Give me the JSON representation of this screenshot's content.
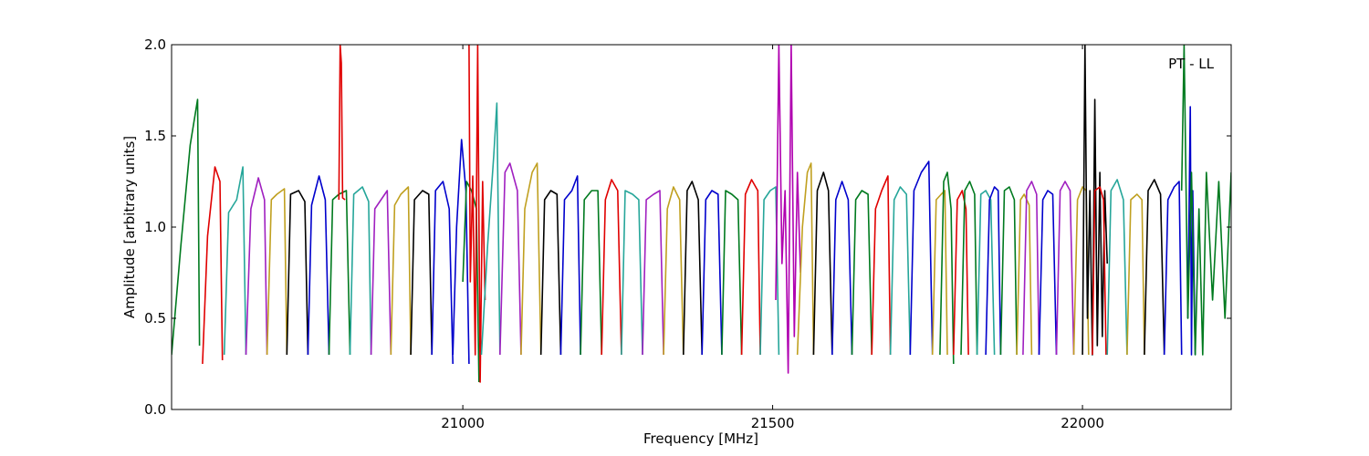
{
  "chart_data": {
    "type": "line",
    "title": "",
    "xlabel": "Frequency [MHz]",
    "ylabel": "Amplitude [arbitrary units]",
    "annotation": "PT - LL",
    "xlim": [
      20530,
      22240
    ],
    "ylim": [
      0.0,
      2.0
    ],
    "xticks": [
      21000,
      21500,
      22000
    ],
    "xtick_labels": [
      "21000",
      "21500",
      "22000"
    ],
    "yticks": [
      0.0,
      0.5,
      1.0,
      1.5,
      2.0
    ],
    "ytick_labels": [
      "0.0",
      "0.5",
      "1.0",
      "1.5",
      "2.0"
    ],
    "grid": false,
    "legend": "none",
    "colors": [
      "#0000cc",
      "#007a1f",
      "#e00000",
      "#26a69a",
      "#a020c0",
      "#c0a020",
      "#000000",
      "#b000b0",
      "#1414c8"
    ],
    "series": [
      {
        "color": "#007a1f",
        "x": [
          20530,
          20545,
          20560,
          20572,
          20575
        ],
        "y": [
          0.3,
          0.9,
          1.45,
          1.7,
          0.35
        ]
      },
      {
        "color": "#e00000",
        "x": [
          20580,
          20588,
          20600,
          20608,
          20612
        ],
        "y": [
          0.25,
          0.95,
          1.33,
          1.25,
          0.27
        ]
      },
      {
        "color": "#26a69a",
        "x": [
          20615,
          20622,
          20635,
          20645,
          20650
        ],
        "y": [
          0.3,
          1.08,
          1.15,
          1.33,
          0.3
        ]
      },
      {
        "color": "#a020c0",
        "x": [
          20650,
          20658,
          20670,
          20680,
          20684
        ],
        "y": [
          0.3,
          1.1,
          1.27,
          1.15,
          0.3
        ]
      },
      {
        "color": "#c0a020",
        "x": [
          20684,
          20691,
          20700,
          20712,
          20716
        ],
        "y": [
          0.3,
          1.15,
          1.18,
          1.21,
          0.3
        ]
      },
      {
        "color": "#000000",
        "x": [
          20716,
          20722,
          20735,
          20745,
          20750
        ],
        "y": [
          0.3,
          1.18,
          1.2,
          1.14,
          0.3
        ]
      },
      {
        "color": "#0000cc",
        "x": [
          20750,
          20756,
          20768,
          20778,
          20784
        ],
        "y": [
          0.3,
          1.12,
          1.28,
          1.15,
          0.3
        ]
      },
      {
        "color": "#007a1f",
        "x": [
          20784,
          20790,
          20800,
          20812,
          20818
        ],
        "y": [
          0.3,
          1.15,
          1.18,
          1.2,
          0.3
        ]
      },
      {
        "color": "#e00000",
        "x": [
          20800,
          20802,
          20804,
          20806,
          20810
        ],
        "y": [
          1.15,
          2.0,
          1.9,
          1.16,
          1.15
        ]
      },
      {
        "color": "#26a69a",
        "x": [
          20818,
          20824,
          20838,
          20848,
          20852
        ],
        "y": [
          0.3,
          1.18,
          1.22,
          1.14,
          0.3
        ]
      },
      {
        "color": "#a020c0",
        "x": [
          20852,
          20858,
          20868,
          20878,
          20884
        ],
        "y": [
          0.3,
          1.1,
          1.15,
          1.2,
          0.3
        ]
      },
      {
        "color": "#c0a020",
        "x": [
          20884,
          20890,
          20900,
          20912,
          20916
        ],
        "y": [
          0.3,
          1.12,
          1.18,
          1.22,
          0.3
        ]
      },
      {
        "color": "#000000",
        "x": [
          20916,
          20922,
          20935,
          20945,
          20950
        ],
        "y": [
          0.3,
          1.15,
          1.2,
          1.18,
          0.3
        ]
      },
      {
        "color": "#0000cc",
        "x": [
          20950,
          20956,
          20968,
          20978,
          20984
        ],
        "y": [
          0.3,
          1.2,
          1.25,
          1.1,
          0.25
        ]
      },
      {
        "color": "#0000cc",
        "x": [
          20984,
          20990,
          20998,
          21005,
          21010
        ],
        "y": [
          0.3,
          1.0,
          1.48,
          1.2,
          0.25
        ]
      },
      {
        "color": "#007a1f",
        "x": [
          21000,
          21006,
          21014,
          21022,
          21026
        ],
        "y": [
          0.7,
          1.25,
          1.2,
          1.1,
          0.15
        ]
      },
      {
        "color": "#e00000",
        "x": [
          21010,
          21012,
          21016,
          21020,
          21024,
          21028,
          21032,
          21036
        ],
        "y": [
          2.0,
          0.7,
          1.28,
          0.3,
          2.0,
          0.15,
          1.25,
          0.6
        ]
      },
      {
        "color": "#26a69a",
        "x": [
          21030,
          21040,
          21050,
          21055,
          21060
        ],
        "y": [
          0.3,
          0.9,
          1.4,
          1.68,
          0.3
        ]
      },
      {
        "color": "#a020c0",
        "x": [
          21060,
          21068,
          21076,
          21088,
          21094
        ],
        "y": [
          0.3,
          1.3,
          1.35,
          1.2,
          0.3
        ]
      },
      {
        "color": "#c0a020",
        "x": [
          21094,
          21100,
          21112,
          21120,
          21126
        ],
        "y": [
          0.3,
          1.1,
          1.3,
          1.35,
          0.3
        ]
      },
      {
        "color": "#000000",
        "x": [
          21126,
          21132,
          21142,
          21152,
          21158
        ],
        "y": [
          0.3,
          1.15,
          1.2,
          1.18,
          0.3
        ]
      },
      {
        "color": "#0000cc",
        "x": [
          21158,
          21164,
          21176,
          21185,
          21190
        ],
        "y": [
          0.3,
          1.15,
          1.2,
          1.28,
          0.3
        ]
      },
      {
        "color": "#007a1f",
        "x": [
          21190,
          21196,
          21208,
          21218,
          21224
        ],
        "y": [
          0.3,
          1.15,
          1.2,
          1.2,
          0.3
        ]
      },
      {
        "color": "#e00000",
        "x": [
          21224,
          21230,
          21240,
          21250,
          21256
        ],
        "y": [
          0.3,
          1.15,
          1.26,
          1.2,
          0.3
        ]
      },
      {
        "color": "#26a69a",
        "x": [
          21256,
          21262,
          21274,
          21284,
          21290
        ],
        "y": [
          0.3,
          1.2,
          1.18,
          1.15,
          0.3
        ]
      },
      {
        "color": "#a020c0",
        "x": [
          21290,
          21296,
          21308,
          21318,
          21324
        ],
        "y": [
          0.3,
          1.15,
          1.18,
          1.2,
          0.3
        ]
      },
      {
        "color": "#c0a020",
        "x": [
          21324,
          21330,
          21340,
          21350,
          21356
        ],
        "y": [
          0.3,
          1.1,
          1.22,
          1.15,
          0.3
        ]
      },
      {
        "color": "#000000",
        "x": [
          21356,
          21362,
          21370,
          21380,
          21386
        ],
        "y": [
          0.3,
          1.2,
          1.25,
          1.15,
          0.3
        ]
      },
      {
        "color": "#0000cc",
        "x": [
          21386,
          21392,
          21402,
          21412,
          21418
        ],
        "y": [
          0.3,
          1.15,
          1.2,
          1.18,
          0.3
        ]
      },
      {
        "color": "#007a1f",
        "x": [
          21418,
          21424,
          21434,
          21444,
          21450
        ],
        "y": [
          0.3,
          1.2,
          1.18,
          1.15,
          0.3
        ]
      },
      {
        "color": "#e00000",
        "x": [
          21450,
          21456,
          21466,
          21476,
          21480
        ],
        "y": [
          0.3,
          1.18,
          1.26,
          1.2,
          0.3
        ]
      },
      {
        "color": "#26a69a",
        "x": [
          21480,
          21486,
          21496,
          21505,
          21510
        ],
        "y": [
          0.3,
          1.15,
          1.2,
          1.22,
          0.3
        ]
      },
      {
        "color": "#b000b0",
        "x": [
          21505,
          21510,
          21515,
          21520,
          21525,
          21530,
          21535,
          21540,
          21545
        ],
        "y": [
          0.6,
          2.0,
          0.8,
          1.2,
          0.2,
          2.0,
          0.4,
          1.3,
          0.75
        ]
      },
      {
        "color": "#c0a020",
        "x": [
          21540,
          21548,
          21556,
          21562,
          21566
        ],
        "y": [
          0.3,
          1.0,
          1.3,
          1.35,
          0.3
        ]
      },
      {
        "color": "#000000",
        "x": [
          21566,
          21572,
          21582,
          21590,
          21596
        ],
        "y": [
          0.3,
          1.2,
          1.3,
          1.2,
          0.3
        ]
      },
      {
        "color": "#0000cc",
        "x": [
          21596,
          21602,
          21612,
          21622,
          21628
        ],
        "y": [
          0.3,
          1.15,
          1.25,
          1.15,
          0.3
        ]
      },
      {
        "color": "#007a1f",
        "x": [
          21628,
          21634,
          21644,
          21654,
          21660
        ],
        "y": [
          0.3,
          1.15,
          1.2,
          1.18,
          0.3
        ]
      },
      {
        "color": "#e00000",
        "x": [
          21660,
          21666,
          21676,
          21686,
          21690
        ],
        "y": [
          0.3,
          1.1,
          1.2,
          1.28,
          0.3
        ]
      },
      {
        "color": "#26a69a",
        "x": [
          21690,
          21696,
          21706,
          21716,
          21722
        ],
        "y": [
          0.3,
          1.15,
          1.22,
          1.18,
          0.3
        ]
      },
      {
        "color": "#0000cc",
        "x": [
          21722,
          21728,
          21740,
          21752,
          21758
        ],
        "y": [
          0.3,
          1.2,
          1.3,
          1.36,
          0.3
        ]
      },
      {
        "color": "#c0a020",
        "x": [
          21758,
          21764,
          21772,
          21778,
          21782
        ],
        "y": [
          0.3,
          1.15,
          1.18,
          1.2,
          0.3
        ]
      },
      {
        "color": "#007a1f",
        "x": [
          21770,
          21776,
          21782,
          21788,
          21792
        ],
        "y": [
          0.3,
          1.25,
          1.3,
          1.1,
          0.25
        ]
      },
      {
        "color": "#e00000",
        "x": [
          21792,
          21798,
          21806,
          21812,
          21816
        ],
        "y": [
          0.3,
          1.15,
          1.2,
          1.1,
          0.3
        ]
      },
      {
        "color": "#007a1f",
        "x": [
          21804,
          21810,
          21818,
          21826,
          21830
        ],
        "y": [
          0.3,
          1.2,
          1.25,
          1.18,
          0.3
        ]
      },
      {
        "color": "#26a69a",
        "x": [
          21830,
          21836,
          21844,
          21852,
          21858
        ],
        "y": [
          0.3,
          1.18,
          1.2,
          1.15,
          0.3
        ]
      },
      {
        "color": "#0000cc",
        "x": [
          21844,
          21850,
          21858,
          21864,
          21868
        ],
        "y": [
          0.3,
          1.15,
          1.22,
          1.2,
          0.3
        ]
      },
      {
        "color": "#007a1f",
        "x": [
          21868,
          21874,
          21882,
          21890,
          21894
        ],
        "y": [
          0.3,
          1.2,
          1.22,
          1.15,
          0.3
        ]
      },
      {
        "color": "#c0a020",
        "x": [
          21894,
          21900,
          21906,
          21914,
          21918
        ],
        "y": [
          0.3,
          1.15,
          1.18,
          1.12,
          0.3
        ]
      },
      {
        "color": "#a020c0",
        "x": [
          21904,
          21910,
          21918,
          21926,
          21930
        ],
        "y": [
          0.3,
          1.2,
          1.25,
          1.18,
          0.3
        ]
      },
      {
        "color": "#0000cc",
        "x": [
          21930,
          21936,
          21944,
          21952,
          21958
        ],
        "y": [
          0.3,
          1.15,
          1.2,
          1.18,
          0.3
        ]
      },
      {
        "color": "#a020c0",
        "x": [
          21958,
          21964,
          21972,
          21980,
          21986
        ],
        "y": [
          0.3,
          1.2,
          1.25,
          1.2,
          0.3
        ]
      },
      {
        "color": "#c0a020",
        "x": [
          21986,
          21992,
          22000,
          22006,
          22010
        ],
        "y": [
          0.3,
          1.15,
          1.22,
          1.2,
          0.3
        ]
      },
      {
        "color": "#000000",
        "x": [
          22000,
          22004,
          22008,
          22012,
          22016,
          22020,
          22024,
          22028,
          22032,
          22036,
          22040
        ],
        "y": [
          0.3,
          2.0,
          0.5,
          1.2,
          0.3,
          1.7,
          0.35,
          1.3,
          0.4,
          1.2,
          0.8
        ]
      },
      {
        "color": "#e00000",
        "x": [
          22016,
          22020,
          22028,
          22034,
          22038
        ],
        "y": [
          0.3,
          1.2,
          1.22,
          1.15,
          0.3
        ]
      },
      {
        "color": "#26a69a",
        "x": [
          22040,
          22046,
          22056,
          22066,
          22072
        ],
        "y": [
          0.3,
          1.2,
          1.26,
          1.15,
          0.3
        ]
      },
      {
        "color": "#c0a020",
        "x": [
          22072,
          22078,
          22088,
          22096,
          22100
        ],
        "y": [
          0.3,
          1.15,
          1.18,
          1.15,
          0.3
        ]
      },
      {
        "color": "#000000",
        "x": [
          22100,
          22106,
          22116,
          22126,
          22132
        ],
        "y": [
          0.3,
          1.2,
          1.26,
          1.18,
          0.3
        ]
      },
      {
        "color": "#0000cc",
        "x": [
          22132,
          22138,
          22148,
          22156,
          22160
        ],
        "y": [
          0.3,
          1.15,
          1.22,
          1.25,
          0.3
        ]
      },
      {
        "color": "#0000cc",
        "x": [
          22170,
          22174,
          22176,
          22178,
          22182
        ],
        "y": [
          0.5,
          1.66,
          0.3,
          1.2,
          0.3
        ]
      },
      {
        "color": "#007a1f",
        "x": [
          22160,
          22164,
          22170,
          22176,
          22182,
          22188,
          22194,
          22200,
          22210,
          22220,
          22230,
          22240
        ],
        "y": [
          1.2,
          2.0,
          0.5,
          1.3,
          0.3,
          1.1,
          0.3,
          1.3,
          0.6,
          1.25,
          0.5,
          1.3
        ]
      }
    ]
  }
}
